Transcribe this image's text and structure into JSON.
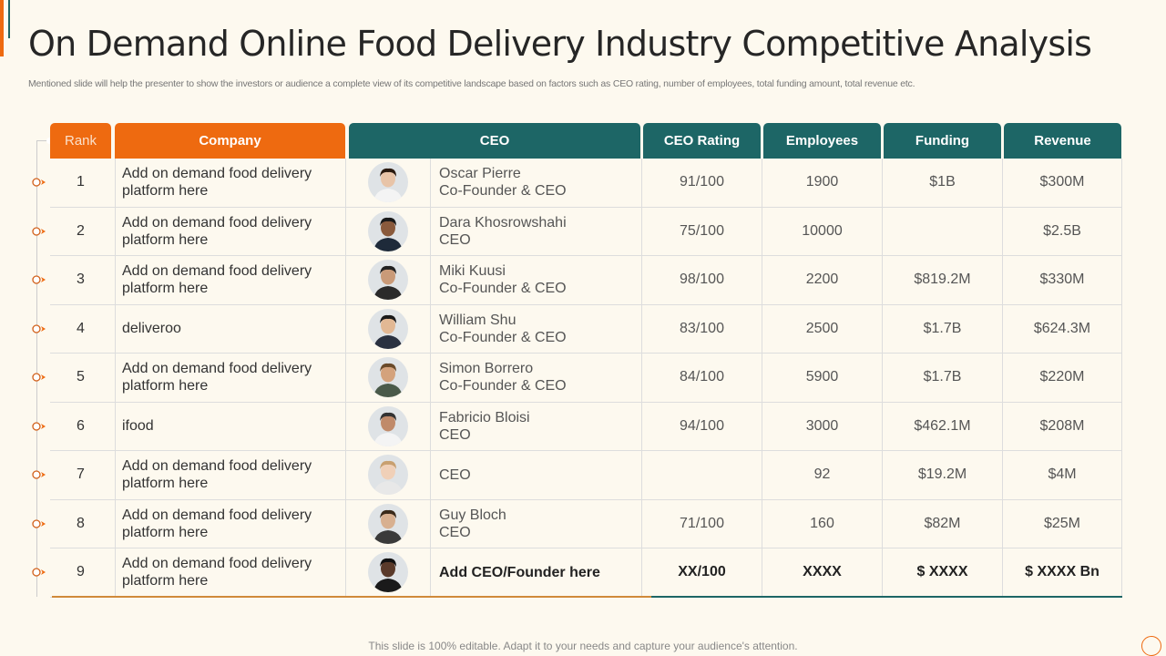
{
  "title": "On Demand Online Food Delivery Industry Competitive Analysis",
  "subtitle": "Mentioned slide will help the presenter to show the investors or audience a complete view of its competitive landscape based on factors such as CEO rating, number of employees, total funding amount, total revenue etc.",
  "colors": {
    "accent": "#ee6a10",
    "teal": "#1d6666",
    "background": "#fdf9ef"
  },
  "table": {
    "headers": {
      "rank": "Rank",
      "company": "Company",
      "ceo": "CEO",
      "rating": "CEO Rating",
      "employees": "Employees",
      "funding": "Funding",
      "revenue": "Revenue"
    },
    "rows": [
      {
        "rank": "1",
        "company": "Add on demand food delivery platform here",
        "ceo_name": "Oscar Pierre",
        "ceo_title": "Co-Founder & CEO",
        "rating": "91/100",
        "employees": "1900",
        "funding": "$1B",
        "revenue": "$300M"
      },
      {
        "rank": "2",
        "company": "Add on demand food delivery platform here",
        "ceo_name": "Dara Khosrowshahi",
        "ceo_title": "CEO",
        "rating": "75/100",
        "employees": "10000",
        "funding": "",
        "revenue": "$2.5B"
      },
      {
        "rank": "3",
        "company": "Add on demand food delivery platform here",
        "ceo_name": "Miki Kuusi",
        "ceo_title": "Co-Founder & CEO",
        "rating": "98/100",
        "employees": "2200",
        "funding": "$819.2M",
        "revenue": "$330M"
      },
      {
        "rank": "4",
        "company": "deliveroo",
        "ceo_name": "William Shu",
        "ceo_title": "Co-Founder & CEO",
        "rating": "83/100",
        "employees": "2500",
        "funding": "$1.7B",
        "revenue": "$624.3M"
      },
      {
        "rank": "5",
        "company": "Add on demand food delivery platform here",
        "ceo_name": "Simon Borrero",
        "ceo_title": "Co-Founder & CEO",
        "rating": "84/100",
        "employees": "5900",
        "funding": "$1.7B",
        "revenue": "$220M"
      },
      {
        "rank": "6",
        "company": "ifood",
        "ceo_name": "Fabricio Bloisi",
        "ceo_title": "CEO",
        "rating": "94/100",
        "employees": "3000",
        "funding": "$462.1M",
        "revenue": "$208M"
      },
      {
        "rank": "7",
        "company": "Add on demand food delivery platform here",
        "ceo_name": "",
        "ceo_title": "CEO",
        "rating": "",
        "employees": "92",
        "funding": "$19.2M",
        "revenue": "$4M"
      },
      {
        "rank": "8",
        "company": "Add on demand food delivery platform here",
        "ceo_name": "Guy Bloch",
        "ceo_title": "CEO",
        "rating": "71/100",
        "employees": "160",
        "funding": "$82M",
        "revenue": "$25M"
      },
      {
        "rank": "9",
        "company": "Add on demand food delivery platform here",
        "ceo_name": "Add CEO/Founder here",
        "ceo_title": "",
        "rating": "XX/100",
        "employees": "XXXX",
        "funding": "$ XXXX",
        "revenue": "$ XXXX Bn"
      }
    ]
  },
  "footer": "This slide is 100% editable. Adapt it to your needs and capture your audience's attention."
}
